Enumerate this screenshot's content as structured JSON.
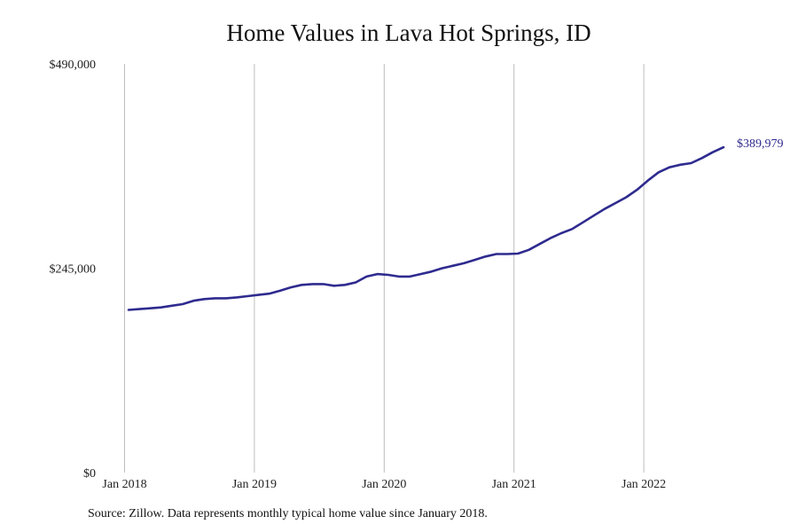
{
  "chart_data": {
    "type": "line",
    "title": "Home Values in Lava Hot Springs, ID",
    "source": "Source: Zillow. Data represents monthly typical home value since January 2018.",
    "xlabel": "",
    "ylabel": "",
    "ylim": [
      0,
      490000
    ],
    "y_ticks": [
      {
        "value": 0,
        "label": "$0"
      },
      {
        "value": 245000,
        "label": "$245,000"
      },
      {
        "value": 490000,
        "label": "$490,000"
      }
    ],
    "x_ticks": [
      "Jan 2018",
      "Jan 2019",
      "Jan 2020",
      "Jan 2021",
      "Jan 2022"
    ],
    "x_start": "2018-01",
    "grid": {
      "vertical": true,
      "horizontal": false
    },
    "line_color": "#2e2b8f",
    "end_label": "$389,979",
    "series": [
      {
        "values": [
          195000,
          196000,
          197000,
          198000,
          200000,
          202000,
          206000,
          208000,
          209000,
          209000,
          210000,
          211500,
          213000,
          214500,
          218000,
          222000,
          225000,
          226000,
          226000,
          224000,
          225000,
          228000,
          235000,
          238000,
          237000,
          235000,
          235000,
          238000,
          241000,
          245000,
          248000,
          251000,
          255000,
          259000,
          262000,
          262000,
          262500,
          267000,
          274000,
          281000,
          287000,
          292000,
          300000,
          308000,
          316000,
          323000,
          330000,
          339000,
          350000,
          360000,
          366000,
          369000,
          371000,
          377000,
          384000,
          389979
        ]
      }
    ]
  }
}
